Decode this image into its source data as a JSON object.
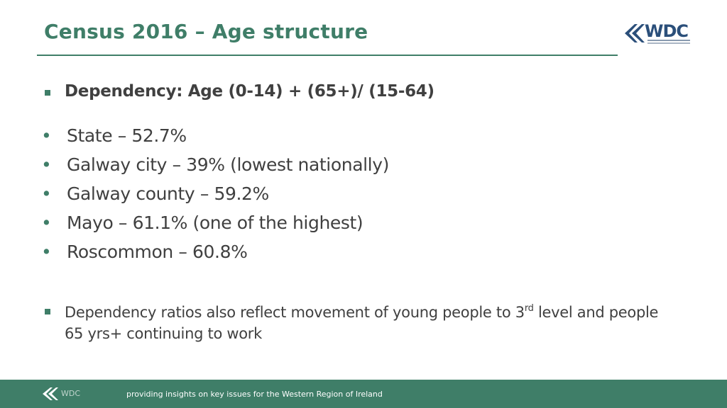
{
  "title": "Census 2016 – Age structure",
  "logo": {
    "text": "WDC",
    "icon": "wdc-chevron-logo"
  },
  "heading": "Dependency: Age (0-14) + (65+)/ (15-64)",
  "bullet_items": [
    {
      "text": "State – 52.7%"
    },
    {
      "text": "Galway city – 39% (lowest nationally)"
    },
    {
      "text": "Galway county – 59.2%"
    },
    {
      "text": "Mayo –  61.1% (one of the highest)"
    },
    {
      "text": "Roscommon – 60.8%"
    }
  ],
  "note": {
    "before": "Dependency ratios also reflect movement of young people to 3",
    "sup": "rd",
    "after": " level and people 65 yrs+ continuing to work"
  },
  "footer": {
    "brand": "WDC",
    "tagline": "providing insights on key issues for the Western Region of Ireland"
  },
  "colors": {
    "accent": "#3f7e68",
    "text": "#404040",
    "logo": "#2b4f7a"
  }
}
